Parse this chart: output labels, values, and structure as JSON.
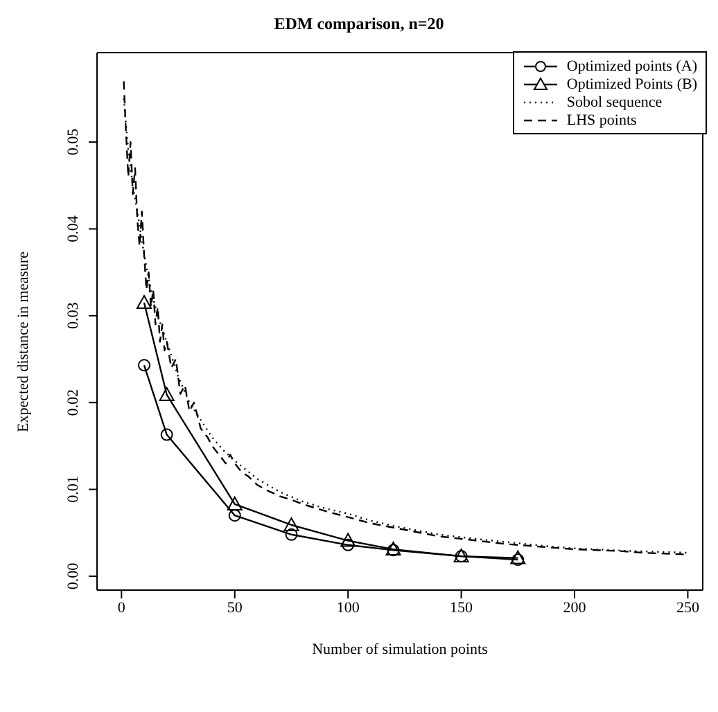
{
  "chart_data": {
    "type": "line",
    "title": "EDM comparison, n=20",
    "xlabel": "Number of simulation points",
    "ylabel": "Expected distance in measure",
    "xlim": [
      -10.8,
      256.6
    ],
    "ylim": [
      -0.0016,
      0.0603
    ],
    "xticks": [
      0,
      50,
      100,
      150,
      200,
      250
    ],
    "yticks": [
      {
        "value": 0,
        "label": "0.00"
      },
      {
        "value": 0.01,
        "label": "0.01"
      },
      {
        "value": 0.02,
        "label": "0.02"
      },
      {
        "value": 0.03,
        "label": "0.03"
      },
      {
        "value": 0.04,
        "label": "0.04"
      },
      {
        "value": 0.05,
        "label": "0.05"
      }
    ],
    "grid": false,
    "legend": "top right",
    "series": [
      {
        "name": "Optimized points (A)",
        "color": "#000000",
        "marker": "circle",
        "line_style": "solid",
        "x": [
          10,
          20,
          50,
          75,
          100,
          120,
          150,
          175
        ],
        "values": [
          0.0243,
          0.0163,
          0.007,
          0.0048,
          0.0036,
          0.003,
          0.0023,
          0.0019
        ]
      },
      {
        "name": "Optimized Points (B)",
        "color": "#000000",
        "marker": "triangle",
        "line_style": "solid",
        "x": [
          10,
          20,
          50,
          75,
          100,
          120,
          150,
          175
        ],
        "values": [
          0.0315,
          0.0209,
          0.0083,
          0.0059,
          0.0041,
          0.0031,
          0.0023,
          0.0021
        ]
      },
      {
        "name": "Sobol sequence",
        "color": "#000000",
        "marker": "none",
        "line_style": "dotted",
        "x": [
          1,
          3,
          5,
          7,
          10,
          13,
          16,
          20,
          25,
          30,
          35,
          40,
          45,
          50,
          60,
          70,
          80,
          90,
          100,
          110,
          120,
          130,
          140,
          150,
          160,
          175,
          190,
          200,
          225,
          250
        ],
        "values": [
          0.055,
          0.049,
          0.045,
          0.042,
          0.037,
          0.033,
          0.03,
          0.027,
          0.023,
          0.02,
          0.018,
          0.016,
          0.0145,
          0.0133,
          0.0112,
          0.0097,
          0.0086,
          0.0078,
          0.0072,
          0.0064,
          0.0058,
          0.0053,
          0.0048,
          0.0045,
          0.0042,
          0.0038,
          0.0034,
          0.0032,
          0.0029,
          0.0027
        ]
      },
      {
        "name": "LHS points",
        "color": "#000000",
        "marker": "none",
        "line_style": "dashed",
        "x": [
          1,
          2,
          3,
          4,
          5,
          6,
          7,
          8,
          9,
          10,
          11,
          12,
          13,
          14,
          15,
          16,
          17,
          18,
          19,
          20,
          22,
          24,
          26,
          28,
          30,
          32,
          35,
          38,
          40,
          43,
          46,
          48,
          50,
          53,
          56,
          60,
          65,
          70,
          75,
          80,
          90,
          100,
          110,
          120,
          130,
          140,
          150,
          160,
          170,
          180,
          190,
          200,
          210,
          220,
          230,
          240,
          250
        ],
        "values": [
          0.057,
          0.051,
          0.046,
          0.05,
          0.044,
          0.047,
          0.041,
          0.038,
          0.042,
          0.037,
          0.033,
          0.035,
          0.031,
          0.033,
          0.029,
          0.031,
          0.027,
          0.029,
          0.026,
          0.027,
          0.024,
          0.025,
          0.021,
          0.022,
          0.019,
          0.02,
          0.017,
          0.016,
          0.015,
          0.014,
          0.013,
          0.014,
          0.013,
          0.012,
          0.0115,
          0.0105,
          0.0098,
          0.0092,
          0.0088,
          0.0083,
          0.0075,
          0.0068,
          0.0061,
          0.0056,
          0.0051,
          0.0046,
          0.0043,
          0.004,
          0.0037,
          0.0035,
          0.0033,
          0.0031,
          0.003,
          0.0029,
          0.0027,
          0.0026,
          0.0025
        ]
      }
    ]
  }
}
